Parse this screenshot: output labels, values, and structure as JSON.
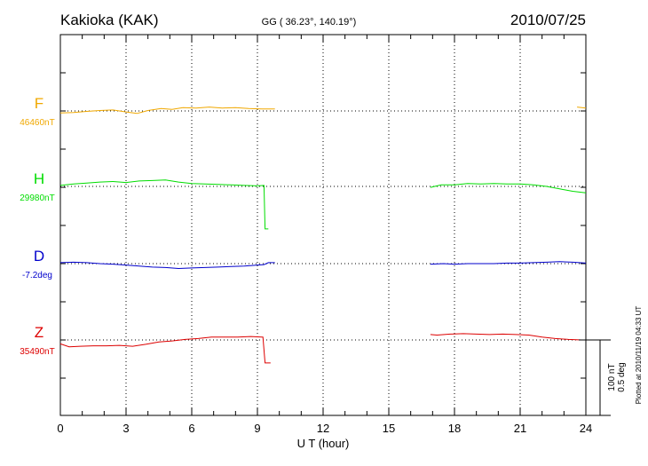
{
  "header": {
    "station": "Kakioka (KAK)",
    "coords": "GG ( 36.23°, 140.19°)",
    "date": "2010/07/25"
  },
  "side_note": "Plotted at 2010/11/19 04:33 UT",
  "chart_data": {
    "type": "line",
    "xlabel": "U T (hour)",
    "xlim": [
      0,
      24
    ],
    "xticks": [
      "0",
      "3",
      "6",
      "9",
      "12",
      "15",
      "18",
      "21",
      "24"
    ],
    "grid": true,
    "scale_bar": {
      "label_1": "100 nT",
      "label_2": "0.5 deg"
    },
    "series": [
      {
        "name": "F",
        "baseline_label": "46460nT",
        "color": "#f0a800",
        "points": [
          [
            0,
            -4
          ],
          [
            0.6,
            -3
          ],
          [
            1.2,
            -1
          ],
          [
            1.8,
            1
          ],
          [
            2.4,
            2
          ],
          [
            3.0,
            -2
          ],
          [
            3.5,
            -5
          ],
          [
            4.0,
            1
          ],
          [
            4.6,
            5
          ],
          [
            5.1,
            3
          ],
          [
            5.6,
            7
          ],
          [
            6.2,
            6
          ],
          [
            6.8,
            8
          ],
          [
            7.4,
            6
          ],
          [
            8.0,
            7
          ],
          [
            8.6,
            5
          ],
          [
            9.2,
            4
          ],
          [
            9.8,
            4
          ]
        ],
        "gap_points": [
          [
            23.6,
            8
          ],
          [
            24.0,
            6
          ]
        ]
      },
      {
        "name": "H",
        "baseline_label": "29980nT",
        "color": "#00dd00",
        "points": [
          [
            0,
            2
          ],
          [
            0.6,
            5
          ],
          [
            1.2,
            7
          ],
          [
            1.8,
            9
          ],
          [
            2.4,
            10
          ],
          [
            3.0,
            8
          ],
          [
            3.6,
            11
          ],
          [
            4.2,
            12
          ],
          [
            4.8,
            13
          ],
          [
            5.4,
            9
          ],
          [
            6.0,
            6
          ],
          [
            6.6,
            5
          ],
          [
            7.2,
            4
          ],
          [
            7.8,
            3
          ],
          [
            8.4,
            2
          ],
          [
            9.0,
            1
          ],
          [
            9.3,
            2
          ],
          [
            9.35,
            -87
          ],
          [
            9.5,
            -87
          ]
        ],
        "gap_points": [
          [
            16.9,
            -2
          ],
          [
            17.4,
            3
          ],
          [
            18.0,
            3
          ],
          [
            18.6,
            6
          ],
          [
            19.2,
            5
          ],
          [
            19.8,
            6
          ],
          [
            20.4,
            5
          ],
          [
            21.0,
            5
          ],
          [
            21.6,
            3
          ],
          [
            22.2,
            0
          ],
          [
            22.8,
            -5
          ],
          [
            23.4,
            -10
          ],
          [
            24.0,
            -13
          ]
        ]
      },
      {
        "name": "D",
        "baseline_label": "-7.2deg",
        "color": "#0000cc",
        "points": [
          [
            0,
            2
          ],
          [
            0.6,
            3
          ],
          [
            1.2,
            2
          ],
          [
            1.8,
            0
          ],
          [
            2.4,
            -1
          ],
          [
            3.0,
            -3
          ],
          [
            3.6,
            -5
          ],
          [
            4.2,
            -7
          ],
          [
            4.8,
            -8
          ],
          [
            5.4,
            -10
          ],
          [
            6.0,
            -9
          ],
          [
            6.6,
            -8
          ],
          [
            7.2,
            -7
          ],
          [
            7.8,
            -6
          ],
          [
            8.4,
            -5
          ],
          [
            9.0,
            -3
          ],
          [
            9.3,
            -2
          ],
          [
            9.5,
            2
          ],
          [
            9.8,
            2
          ]
        ],
        "gap_points": [
          [
            16.9,
            -1
          ],
          [
            17.5,
            0
          ],
          [
            18.0,
            -1
          ],
          [
            18.6,
            0
          ],
          [
            19.2,
            0
          ],
          [
            19.8,
            0
          ],
          [
            20.4,
            1
          ],
          [
            21.0,
            1
          ],
          [
            21.6,
            2
          ],
          [
            22.2,
            3
          ],
          [
            22.8,
            4
          ],
          [
            23.4,
            3
          ],
          [
            24.0,
            1
          ]
        ]
      },
      {
        "name": "Z",
        "baseline_label": "35490nT",
        "color": "#dd0000",
        "points": [
          [
            0,
            -8
          ],
          [
            0.4,
            -14
          ],
          [
            0.9,
            -13
          ],
          [
            1.5,
            -12
          ],
          [
            2.1,
            -12
          ],
          [
            2.7,
            -11
          ],
          [
            3.3,
            -13
          ],
          [
            3.9,
            -9
          ],
          [
            4.5,
            -4
          ],
          [
            5.1,
            -2
          ],
          [
            5.7,
            1
          ],
          [
            6.3,
            3
          ],
          [
            6.9,
            6
          ],
          [
            7.5,
            6
          ],
          [
            8.1,
            6
          ],
          [
            8.7,
            7
          ],
          [
            9.2,
            6
          ],
          [
            9.25,
            6
          ],
          [
            9.35,
            -47
          ],
          [
            9.6,
            -47
          ]
        ],
        "gap_points": [
          [
            16.9,
            11
          ],
          [
            17.2,
            10
          ],
          [
            17.8,
            12
          ],
          [
            18.4,
            13
          ],
          [
            19.0,
            12
          ],
          [
            19.6,
            11
          ],
          [
            20.2,
            12
          ],
          [
            20.8,
            11
          ],
          [
            21.4,
            10
          ],
          [
            22.0,
            6
          ],
          [
            22.6,
            3
          ],
          [
            23.2,
            1
          ],
          [
            23.8,
            0
          ],
          [
            24.0,
            0
          ]
        ]
      }
    ]
  }
}
